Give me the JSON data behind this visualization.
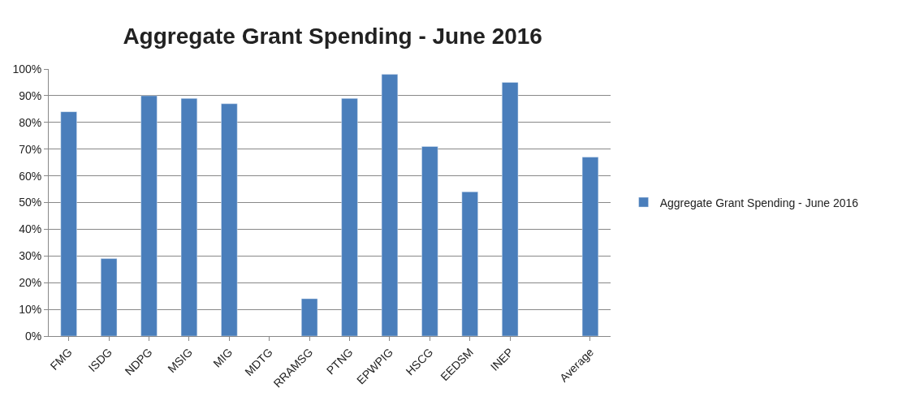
{
  "chart_data": {
    "type": "bar",
    "title": "Aggregate Grant Spending - June 2016",
    "categories": [
      "FMG",
      "ISDG",
      "NDPG",
      "MSIG",
      "MIG",
      "MDTG",
      "RRAMSG",
      "PTNG",
      "EPWPIG",
      "HSCG",
      "EEDSM",
      "INEP",
      null,
      "Average"
    ],
    "series": [
      {
        "name": "Aggregate Grant Spending - June 2016",
        "color": "#4a7ebb",
        "values": [
          84,
          29,
          90,
          89,
          87,
          null,
          14,
          89,
          98,
          71,
          54,
          95,
          null,
          67
        ]
      }
    ],
    "ylim": [
      0,
      100
    ],
    "yticks": [
      {
        "value": 0,
        "label": "0%"
      },
      {
        "value": 10,
        "label": "10%"
      },
      {
        "value": 20,
        "label": "20%"
      },
      {
        "value": 30,
        "label": "30%"
      },
      {
        "value": 40,
        "label": "40%"
      },
      {
        "value": 50,
        "label": "50%"
      },
      {
        "value": 60,
        "label": "60%"
      },
      {
        "value": 70,
        "label": "70%"
      },
      {
        "value": 80,
        "label": "80%"
      },
      {
        "value": 90,
        "label": "90%"
      },
      {
        "value": 100,
        "label": "100%"
      }
    ],
    "grid": "y",
    "legend": "right"
  }
}
